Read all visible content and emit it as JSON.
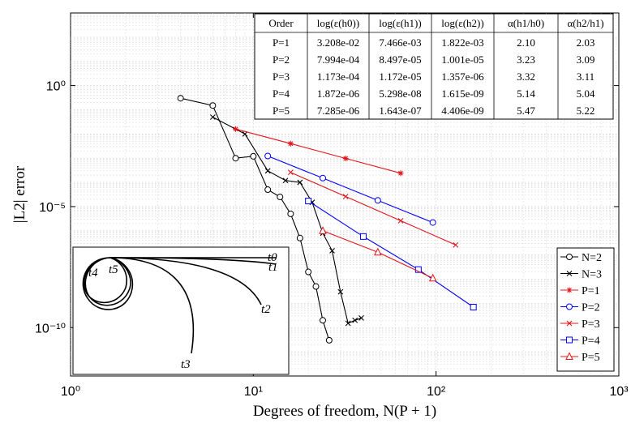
{
  "chart_data": {
    "type": "line",
    "xscale": "log",
    "yscale": "log",
    "xlim": [
      1,
      1000
    ],
    "ylim": [
      1e-12,
      1000.0
    ],
    "grid": true,
    "legend_position": "bottom-right",
    "xlabel": "Degrees of freedom, N(P + 1)",
    "ylabel": "|L2| error",
    "x_ticks": [
      {
        "value": 1,
        "label": "10⁰"
      },
      {
        "value": 10,
        "label": "10¹"
      },
      {
        "value": 100,
        "label": "10²"
      },
      {
        "value": 1000,
        "label": "10³"
      }
    ],
    "y_ticks": [
      {
        "value": 1e-10,
        "label": "10⁻¹⁰"
      },
      {
        "value": 1e-05,
        "label": "10⁻⁵"
      },
      {
        "value": 1,
        "label": "10⁰"
      }
    ],
    "series": [
      {
        "name": "N=2",
        "color": "#000000",
        "marker": "circle",
        "x": [
          4,
          6,
          8,
          10,
          12,
          14,
          16,
          18,
          20,
          22,
          24,
          26
        ],
        "y": [
          0.3,
          0.15,
          0.001,
          0.0012,
          5e-05,
          2.5e-05,
          5e-06,
          5e-07,
          2e-08,
          5e-09,
          2e-10,
          3e-11
        ]
      },
      {
        "name": "N=3",
        "color": "#000000",
        "marker": "x",
        "x": [
          6,
          9,
          12,
          15,
          18,
          21,
          24,
          27,
          30,
          33,
          36,
          39
        ],
        "y": [
          0.05,
          0.01,
          0.0003,
          0.00012,
          0.0001,
          1.5e-05,
          8e-07,
          1.5e-07,
          3e-09,
          1.5e-10,
          2e-10,
          2.5e-10
        ]
      },
      {
        "name": "P=1",
        "color": "#e4141b",
        "marker": "asterisk",
        "x": [
          8,
          16,
          32,
          64
        ],
        "y": [
          0.016,
          0.004,
          0.00098,
          0.00024
        ]
      },
      {
        "name": "P=2",
        "color": "#0000ff",
        "marker": "circle",
        "x": [
          12,
          24,
          48,
          96
        ],
        "y": [
          0.00123,
          0.00015,
          1.8e-05,
          2.2e-06
        ]
      },
      {
        "name": "P=3",
        "color": "#e4141b",
        "marker": "x",
        "x": [
          16,
          32,
          64,
          128
        ],
        "y": [
          0.00026,
          2.6e-05,
          2.6e-06,
          2.6e-07
        ]
      },
      {
        "name": "P=4",
        "color": "#0000ff",
        "marker": "square",
        "x": [
          20,
          40,
          80,
          160
        ],
        "y": [
          1.7e-05,
          5.8e-07,
          2.5e-08,
          7e-10
        ]
      },
      {
        "name": "P=5",
        "color": "#e4141b",
        "marker": "triangle",
        "x": [
          24,
          48,
          96
        ],
        "y": [
          1e-06,
          1.3e-07,
          1.1e-08
        ]
      }
    ]
  },
  "table": {
    "headers": [
      "Order",
      "log(ε(h0))",
      "log(ε(h1))",
      "log(ε(h2))",
      "α(h1/h0)",
      "α(h2/h1)"
    ],
    "rows": [
      [
        "P=1",
        "3.208e-02",
        "7.466e-03",
        "1.822e-03",
        "2.10",
        "2.03"
      ],
      [
        "P=2",
        "7.994e-04",
        "8.497e-05",
        "1.001e-05",
        "3.23",
        "3.09"
      ],
      [
        "P=3",
        "1.173e-04",
        "1.172e-05",
        "1.357e-06",
        "3.32",
        "3.11"
      ],
      [
        "P=4",
        "1.872e-06",
        "5.298e-08",
        "1.615e-09",
        "5.14",
        "5.04"
      ],
      [
        "P=5",
        "7.285e-06",
        "1.643e-07",
        "4.406e-09",
        "5.47",
        "5.22"
      ]
    ]
  },
  "inset": {
    "labels": [
      "t0",
      "t1",
      "t2",
      "t3",
      "t4",
      "t5"
    ]
  }
}
